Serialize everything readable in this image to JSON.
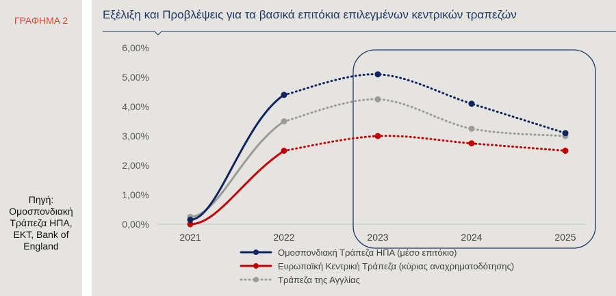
{
  "sidebar": {
    "figure_label": "ΓΡΑΦΗΜΑ 2",
    "source_lines": [
      "Πηγή:",
      "Ομοσπονδιακή",
      "Τράπεζα ΗΠΑ,",
      "ΕΚΤ, Bank of",
      "England"
    ]
  },
  "colors": {
    "background": "#e6e4e0",
    "title": "#1f3864",
    "label_accent": "#e0452c",
    "highlight_box": "#1f3864"
  },
  "chart_data": {
    "type": "line",
    "title": "Εξέλιξη και Προβλέψεις για τα βασικά επιτόκια επιλεγμένων κεντρικών τραπεζών",
    "xlabel": "",
    "ylabel": "",
    "x": [
      "2021",
      "2022",
      "2023",
      "2024",
      "2025"
    ],
    "ylim": [
      0,
      6
    ],
    "y_ticks": [
      "0,00%",
      "1,00%",
      "2,00%",
      "3,00%",
      "4,00%",
      "5,00%",
      "6,00%"
    ],
    "grid": false,
    "legend_position": "bottom",
    "actual_through": "2022",
    "forecast_highlight": [
      "2023",
      "2025"
    ],
    "series": [
      {
        "name": "Ομοσπονδιακή Τράπεζα ΗΠΑ (μέσο επιτόκιο)",
        "color": "#0d2461",
        "values": [
          0.15,
          4.4,
          5.1,
          4.1,
          3.1
        ]
      },
      {
        "name": "Ευρωπαϊκή Κεντρική Τράπεζα (κύριας αναχρηματοδότησης)",
        "color": "#c00000",
        "values": [
          0.0,
          2.5,
          3.0,
          2.75,
          2.5
        ]
      },
      {
        "name": "Τράπεζα της Αγγλίας",
        "color": "#9b9b9b",
        "values": [
          0.25,
          3.5,
          4.25,
          3.25,
          3.0
        ]
      }
    ]
  }
}
